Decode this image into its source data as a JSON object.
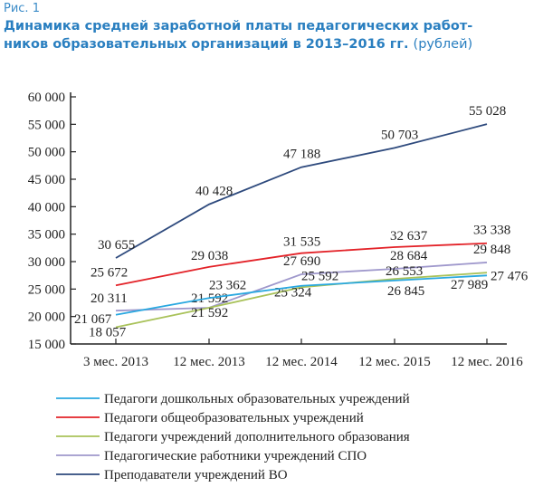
{
  "figure_label": "Рис. 1",
  "title_line1": "Динамика средней заработной платы педагогических работ-",
  "title_line2": "ников образовательных организаций в 2013–2016 гг.",
  "unit": "(рублей)",
  "chart_data": {
    "type": "line",
    "title": "Динамика средней заработной платы педагогических работников образовательных организаций в 2013–2016 гг.",
    "ylabel": "рублей",
    "categories": [
      "3 мес. 2013",
      "12 мес. 2013",
      "12 мес. 2014",
      "12 мес. 2015",
      "12 мес. 2016"
    ],
    "ylim": [
      15000,
      60000
    ],
    "yticks": [
      15000,
      20000,
      25000,
      30000,
      35000,
      40000,
      45000,
      50000,
      55000,
      60000
    ],
    "ytick_labels": [
      "15 000",
      "20 000",
      "25 000",
      "30 000",
      "35 000",
      "40 000",
      "45 000",
      "50 000",
      "55 000",
      "60 000"
    ],
    "legend_position": "bottom",
    "series": [
      {
        "name": "Педагоги дошкольных образовательных учреждений",
        "color": "#29a8e0",
        "values": [
          20311,
          23362,
          25592,
          26553,
          27476
        ],
        "labels": [
          "20 311",
          "23 362",
          "25 592",
          "26 553",
          "27 476"
        ]
      },
      {
        "name": "Педагоги общеобразовательных учреждений",
        "color": "#e32228",
        "values": [
          25672,
          29038,
          31535,
          32637,
          33338
        ],
        "labels": [
          "25 672",
          "29 038",
          "31 535",
          "32 637",
          "33 338"
        ]
      },
      {
        "name": "Педагоги учреждений дополнительного образования",
        "color": "#a9c25a",
        "values": [
          18057,
          21592,
          25324,
          26845,
          27989
        ],
        "labels": [
          "18 057",
          "21 592",
          "25 324",
          "26 845",
          "27 989"
        ]
      },
      {
        "name": "Педагогические работники учреждений СПО",
        "color": "#9f98cc",
        "values": [
          21067,
          21592,
          27690,
          28684,
          29848
        ],
        "labels": [
          "21 067",
          "21 592",
          "27 690",
          "28 684",
          "29 848"
        ]
      },
      {
        "name": "Преподаватели учреждений ВО",
        "color": "#2e4a7d",
        "values": [
          30655,
          40428,
          47188,
          50703,
          55028
        ],
        "labels": [
          "30 655",
          "40 428",
          "47 188",
          "50 703",
          "55 028"
        ]
      }
    ]
  }
}
